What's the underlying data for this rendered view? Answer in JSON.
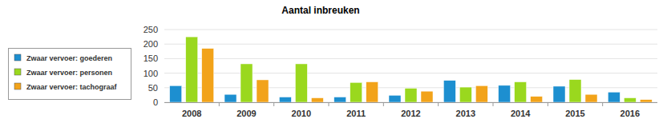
{
  "chart_data": {
    "type": "bar",
    "title": "Aantal inbreuken",
    "categories": [
      "2008",
      "2009",
      "2010",
      "2011",
      "2012",
      "2013",
      "2014",
      "2015",
      "2016"
    ],
    "series": [
      {
        "name": "Zwaar vervoer: goederen",
        "color": "#1d8fd0",
        "values": [
          57,
          27,
          18,
          18,
          24,
          75,
          58,
          55,
          35
        ]
      },
      {
        "name": "Zwaar vervoer: personen",
        "color": "#9ad81e",
        "values": [
          225,
          132,
          132,
          68,
          48,
          52,
          70,
          78,
          15
        ]
      },
      {
        "name": "Zwaar vervoer: tachograaf",
        "color": "#f2a31a",
        "values": [
          185,
          77,
          15,
          70,
          38,
          57,
          20,
          27,
          9
        ]
      }
    ],
    "ylim": [
      0,
      250
    ],
    "yticks": [
      0,
      50,
      100,
      150,
      200,
      250
    ],
    "grid": true,
    "legend": "left"
  }
}
